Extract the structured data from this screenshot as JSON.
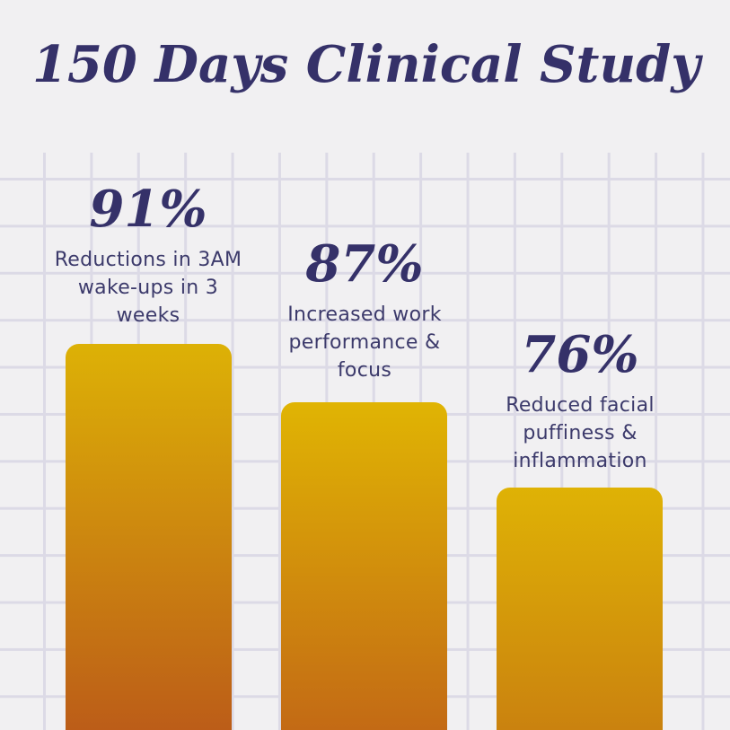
{
  "title": "150 Days Clinical Study",
  "chart_data": {
    "type": "bar",
    "title": "150 Days Clinical Study",
    "categories": [
      "Reductions in 3AM wake-ups in 3 weeks",
      "Increased work performance & focus",
      "Reduced facial puffiness & inflammation"
    ],
    "values": [
      91,
      87,
      76
    ],
    "value_labels": [
      "91%",
      "87%",
      "76%"
    ],
    "ylim": [
      0,
      100
    ],
    "xlabel": "",
    "ylabel": "",
    "grid": true,
    "legend": false
  },
  "bars": [
    {
      "pct": "91%",
      "lines": [
        "Reductions in 3AM",
        "wake-ups in 3",
        "weeks"
      ],
      "top_color": "#ddb106",
      "bottom_color": "#bc5d18"
    },
    {
      "pct": "87%",
      "lines": [
        "Increased work",
        "performance &",
        "focus"
      ],
      "top_color": "#e0b403",
      "bottom_color": "#c36a15"
    },
    {
      "pct": "76%",
      "lines": [
        "Reduced facial",
        "puffiness &",
        "inflammation"
      ],
      "top_color": "#dfb205",
      "bottom_color": "#ca820f"
    }
  ],
  "colors": {
    "background": "#f1f0f2",
    "grid_line": "#dcdae6",
    "heading": "#353169",
    "body_text": "#3c3a6b"
  }
}
